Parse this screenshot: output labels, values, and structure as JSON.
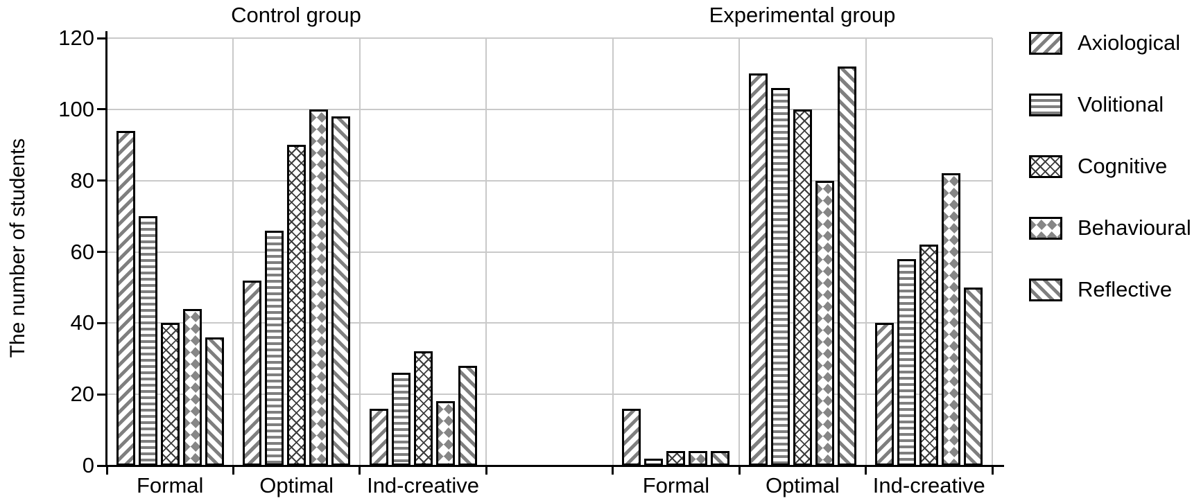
{
  "chart_data": {
    "type": "bar",
    "ylabel": "The number of students",
    "ylim": [
      0,
      120
    ],
    "ytick_step": 20,
    "yticks": [
      0,
      20,
      40,
      60,
      80,
      100,
      120
    ],
    "grid": true,
    "legend_position": "right",
    "gap_slot_between_groups": true,
    "groups": [
      {
        "key": "control",
        "title": "Control group",
        "categories": [
          "Formal",
          "Optimal",
          "Ind-creative"
        ]
      },
      {
        "key": "experimental",
        "title": "Experimental group",
        "categories": [
          "Formal",
          "Optimal",
          "Ind-creative"
        ]
      }
    ],
    "series": [
      {
        "name": "Axiological",
        "pattern": "diagonal-up-hatch",
        "control": [
          94,
          52,
          16
        ],
        "experimental": [
          16,
          110,
          40
        ]
      },
      {
        "name": "Volitional",
        "pattern": "horizontal-lines",
        "control": [
          70,
          66,
          26
        ],
        "experimental": [
          2,
          106,
          58
        ]
      },
      {
        "name": "Cognitive",
        "pattern": "dotted-crosshatch",
        "control": [
          40,
          90,
          32
        ],
        "experimental": [
          4,
          100,
          62
        ]
      },
      {
        "name": "Behavioural",
        "pattern": "gray-diamonds",
        "control": [
          44,
          100,
          18
        ],
        "experimental": [
          4,
          80,
          82
        ]
      },
      {
        "name": "Reflective",
        "pattern": "diagonal-down-hatch",
        "control": [
          36,
          98,
          28
        ],
        "experimental": [
          4,
          112,
          50
        ]
      }
    ]
  },
  "colors": {
    "hatch_gray": "#7f7f7f",
    "bar_border": "#000000",
    "gridline": "#c9c9c9",
    "axis": "#000000",
    "text": "#000000",
    "background": "#ffffff"
  }
}
